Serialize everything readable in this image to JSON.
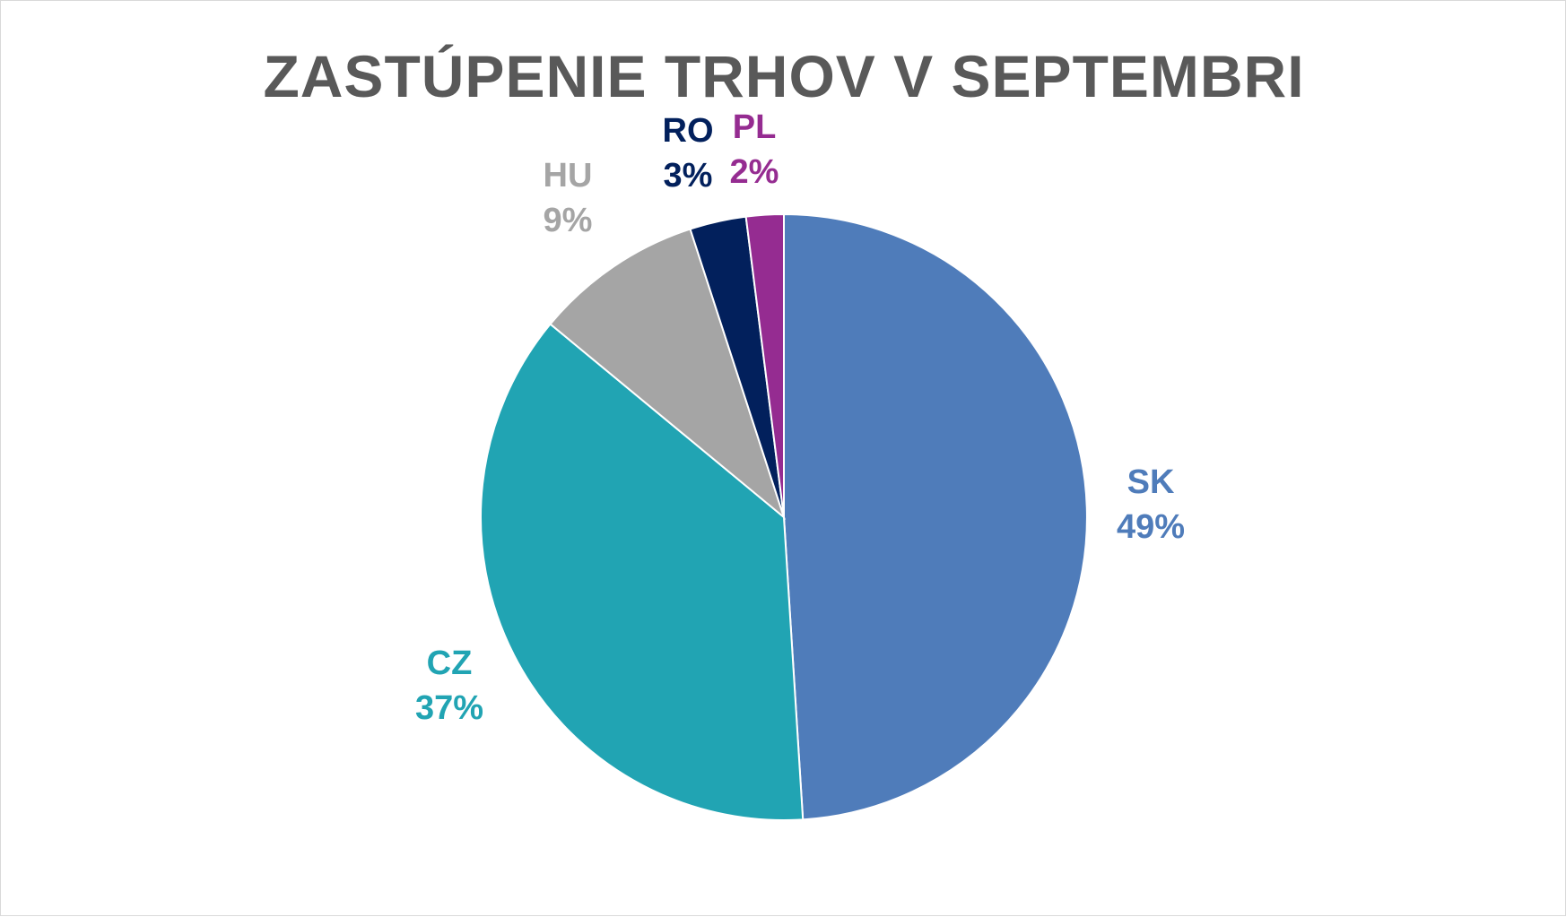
{
  "chart_data": {
    "type": "pie",
    "title": "ZASTÚPENIE TRHOV V SEPTEMBRI",
    "slices": [
      {
        "label": "SK",
        "value": 49,
        "display": "49%",
        "color": "#4F7CBA"
      },
      {
        "label": "CZ",
        "value": 37,
        "display": "37%",
        "color": "#21A4B3"
      },
      {
        "label": "HU",
        "value": 9,
        "display": "9%",
        "color": "#A5A5A5"
      },
      {
        "label": "RO",
        "value": 3,
        "display": "3%",
        "color": "#02205C"
      },
      {
        "label": "PL",
        "value": 2,
        "display": "2%",
        "color": "#952C91"
      }
    ],
    "legend": "none",
    "data_labels": "outside"
  }
}
